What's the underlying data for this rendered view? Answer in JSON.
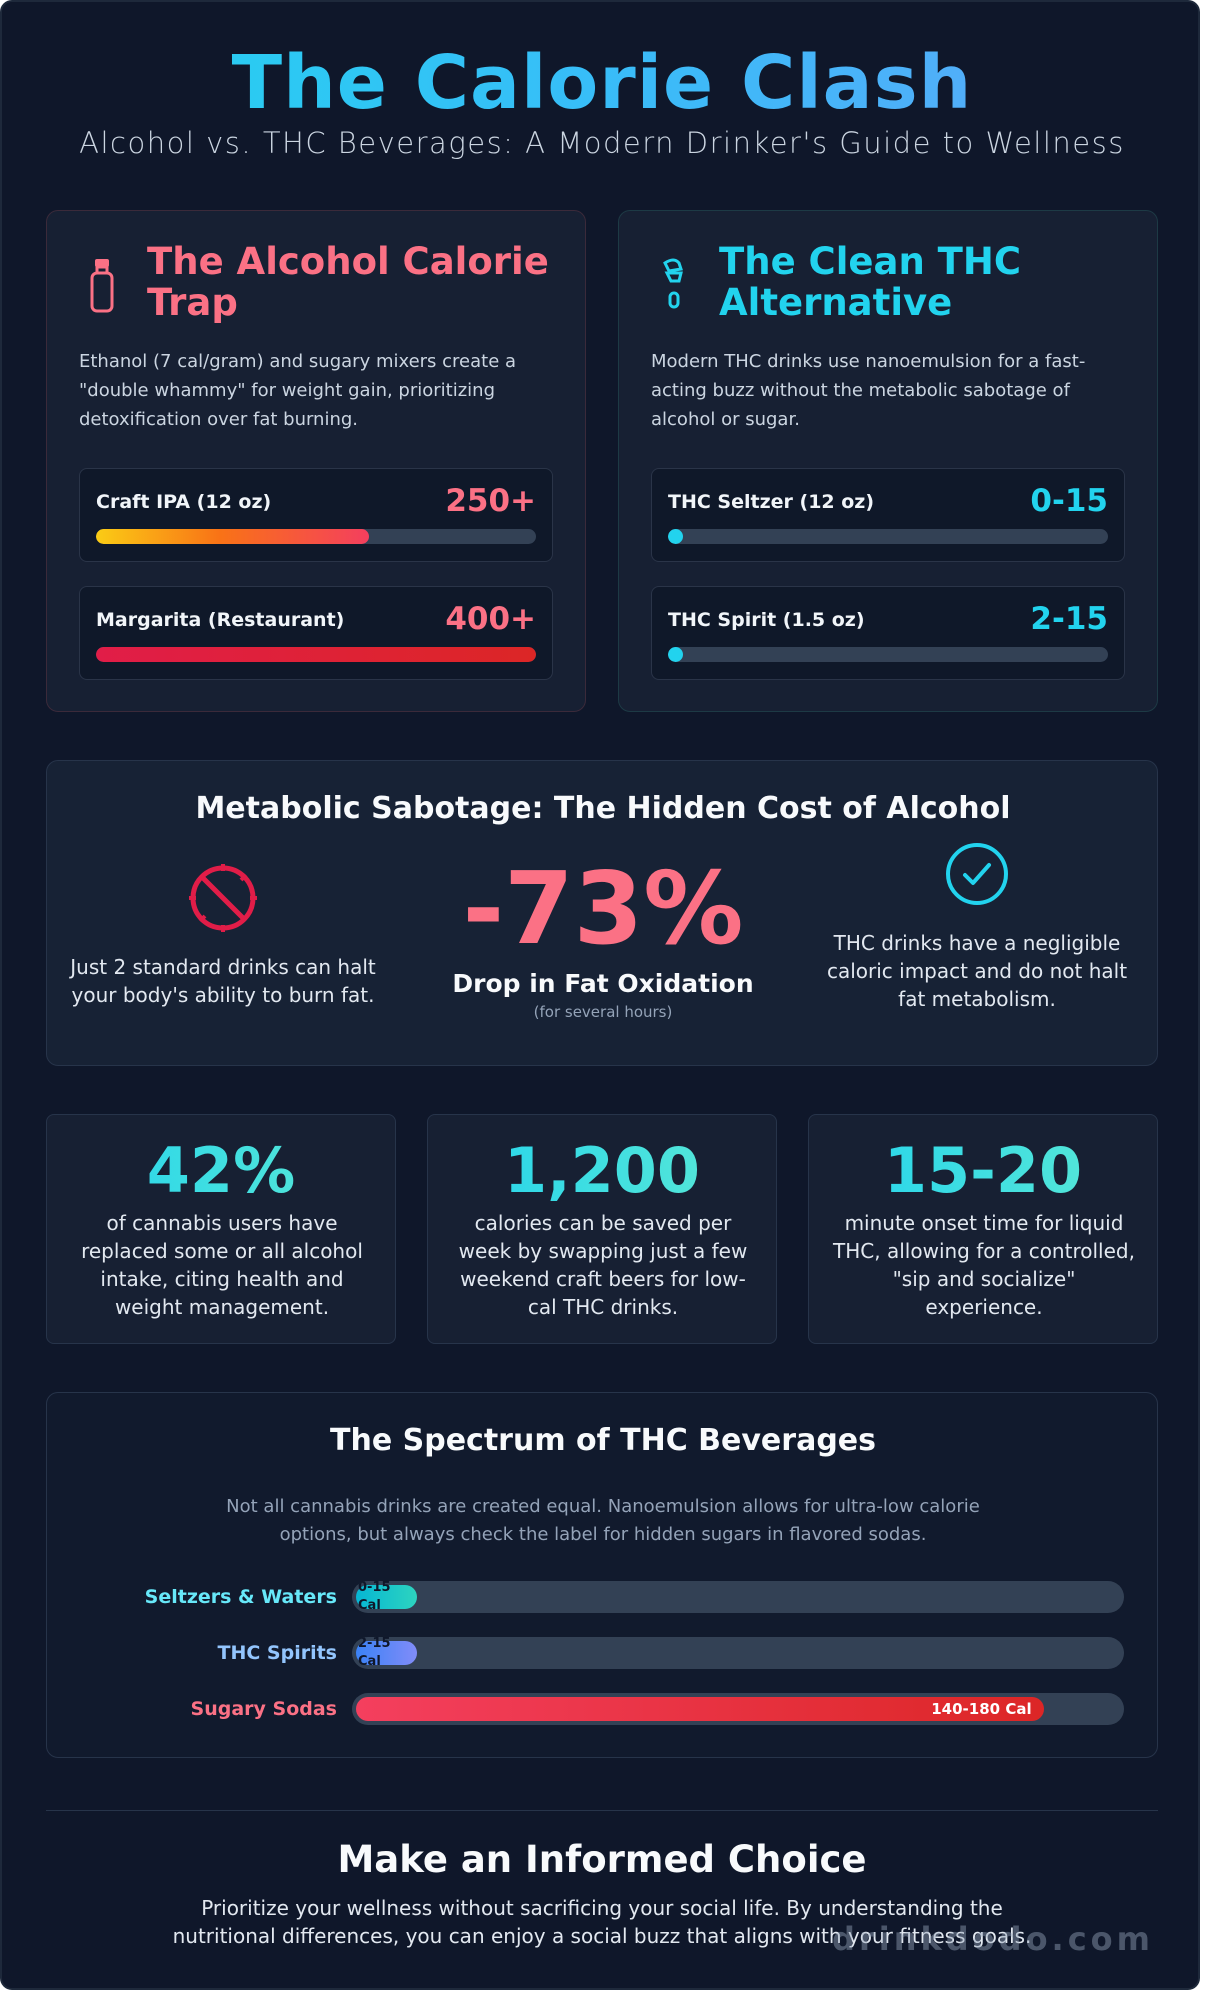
{
  "header": {
    "title": "The Calorie Clash",
    "subtitle": "Alcohol vs. THC Beverages: A Modern Drinker's Guide to Wellness"
  },
  "alcohol_card": {
    "icon": "bottle-icon",
    "title": "The Alcohol Calorie Trap",
    "description": "Ethanol (7 cal/gram) and sugary mixers create a \"double whammy\" for weight gain, prioritizing detoxification over fat burning.",
    "drinks": [
      {
        "name": "Craft IPA (12 oz)",
        "value": "250+",
        "fill": 0.62
      },
      {
        "name": "Margarita (Restaurant)",
        "value": "400+",
        "fill": 1.0
      }
    ]
  },
  "thc_card": {
    "icon": "flask-icon",
    "title": "The Clean THC Alternative",
    "description": "Modern THC drinks use nanoemulsion for a fast-acting buzz without the metabolic sabotage of alcohol or sugar.",
    "drinks": [
      {
        "name": "THC Seltzer (12 oz)",
        "value": "0-15",
        "fill": 0.03
      },
      {
        "name": "THC Spirit (1.5 oz)",
        "value": "2-15",
        "fill": 0.03
      }
    ]
  },
  "metabolic": {
    "title": "Metabolic Sabotage: The Hidden Cost of Alcohol",
    "left_icon": "no-burn-icon",
    "left_text": "Just 2 standard drinks can halt your body's ability to burn fat.",
    "stat_value": "-73%",
    "stat_label": "Drop in Fat Oxidation",
    "stat_note": "(for several hours)",
    "right_icon": "check-circle-icon",
    "right_text": "THC drinks have a negligible caloric impact and do not halt fat metabolism."
  },
  "stats": [
    {
      "value": "42%",
      "text": "of cannabis users have replaced some or all alcohol intake, citing health and weight management."
    },
    {
      "value": "1,200",
      "text": "calories can be saved per week by swapping just a few weekend craft beers for low-cal THC drinks."
    },
    {
      "value": "15-20",
      "text": "minute onset time for liquid THC, allowing for a controlled, \"sip and socialize\" experience."
    }
  ],
  "spectrum": {
    "title": "The Spectrum of THC Beverages",
    "description": "Not all cannabis drinks are created equal. Nanoemulsion allows for ultra-low calorie options, but always check the label for hidden sugars in flavored sodas.",
    "rows": [
      {
        "label": "Seltzers & Waters",
        "value": "0-15 Cal",
        "fill": 0.08
      },
      {
        "label": "THC Spirits",
        "value": "2-15 Cal",
        "fill": 0.08
      },
      {
        "label": "Sugary Sodas",
        "value": "140-180 Cal",
        "fill": 0.9
      }
    ]
  },
  "footer": {
    "title": "Make an Informed Choice",
    "text": "Prioritize your wellness without sacrificing your social life. By understanding the nutritional differences, you can enjoy a social buzz that aligns with your fitness goals.",
    "watermark": "drinkdodo.com"
  },
  "colors": {
    "background": "#0f172a",
    "alcohol_accent": "#fb7185",
    "thc_accent": "#22d3ee"
  }
}
